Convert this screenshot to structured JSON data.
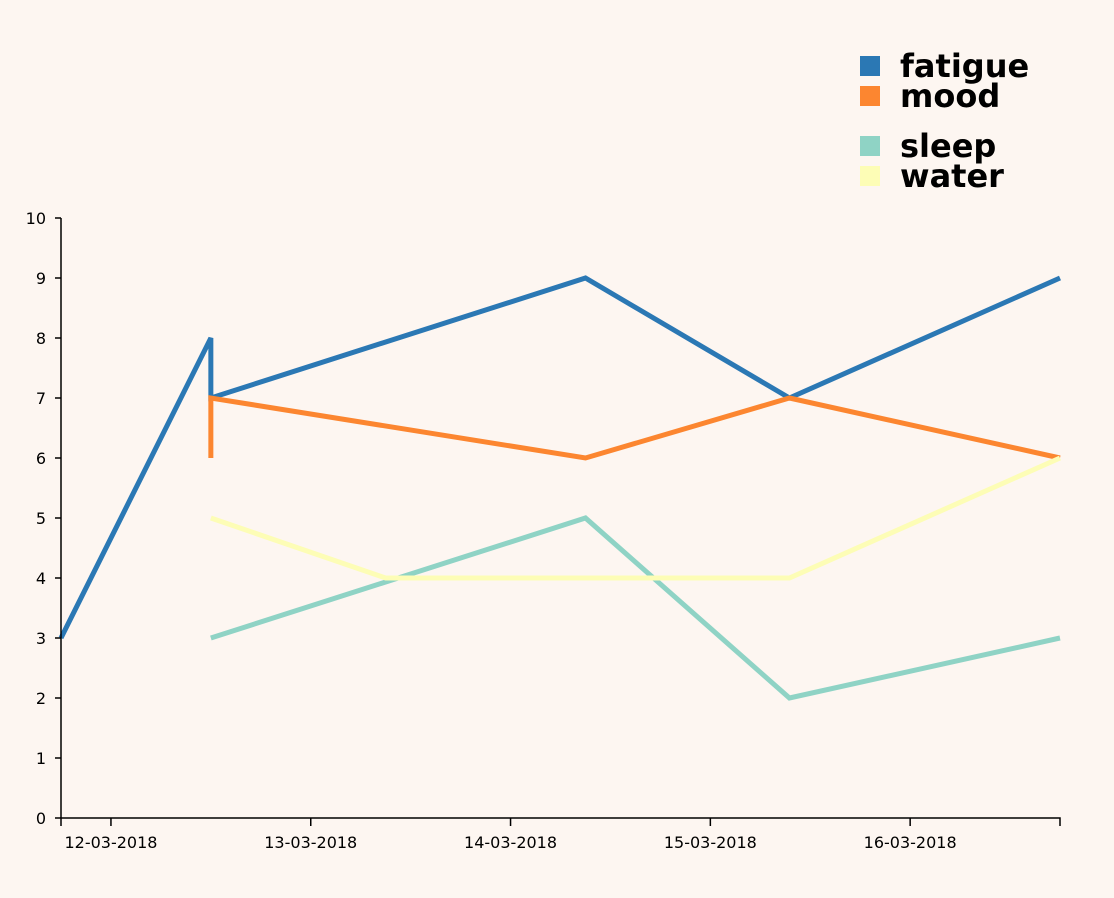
{
  "chart_data": {
    "type": "line",
    "title": "",
    "xlabel": "",
    "ylabel": "",
    "ylim": [
      0,
      10
    ],
    "y_ticks": [
      "0",
      "1",
      "2",
      "3",
      "4",
      "5",
      "6",
      "7",
      "8",
      "9",
      "10"
    ],
    "x_domain": [
      "2018-03-11T18:00",
      "2018-03-16T18:00"
    ],
    "x_ticks": [
      {
        "label": "12-03-2018",
        "date": "2018-03-12T00:00"
      },
      {
        "label": "13-03-2018",
        "date": "2018-03-13T00:00"
      },
      {
        "label": "14-03-2018",
        "date": "2018-03-14T00:00"
      },
      {
        "label": "15-03-2018",
        "date": "2018-03-15T00:00"
      },
      {
        "label": "16-03-2018",
        "date": "2018-03-16T00:00"
      }
    ],
    "grid": false,
    "legend_position": "top-right",
    "series": [
      {
        "name": "fatigue",
        "color": "#2b78b4",
        "points": [
          {
            "x": "2018-03-11T18:00",
            "y": 3
          },
          {
            "x": "2018-03-12T12:00",
            "y": 8
          },
          {
            "x": "2018-03-12T12:00",
            "y": 7
          },
          {
            "x": "2018-03-14T09:00",
            "y": 9
          },
          {
            "x": "2018-03-15T09:30",
            "y": 7
          },
          {
            "x": "2018-03-16T18:00",
            "y": 9
          }
        ]
      },
      {
        "name": "mood",
        "color": "#fc8630",
        "points": [
          {
            "x": "2018-03-12T12:00",
            "y": 6
          },
          {
            "x": "2018-03-12T12:00",
            "y": 7
          },
          {
            "x": "2018-03-14T09:00",
            "y": 6
          },
          {
            "x": "2018-03-15T09:30",
            "y": 7
          },
          {
            "x": "2018-03-16T18:00",
            "y": 6
          }
        ]
      },
      {
        "name": "sleep",
        "color": "#8fd3c5",
        "points": [
          {
            "x": "2018-03-12T12:00",
            "y": 3
          },
          {
            "x": "2018-03-14T09:00",
            "y": 5
          },
          {
            "x": "2018-03-15T09:30",
            "y": 2
          },
          {
            "x": "2018-03-16T18:00",
            "y": 3
          }
        ]
      },
      {
        "name": "water",
        "color": "#fdfdb6",
        "points": [
          {
            "x": "2018-03-12T12:00",
            "y": 5
          },
          {
            "x": "2018-03-13T09:00",
            "y": 4
          },
          {
            "x": "2018-03-15T09:30",
            "y": 4
          },
          {
            "x": "2018-03-16T18:00",
            "y": 6
          }
        ]
      }
    ]
  }
}
